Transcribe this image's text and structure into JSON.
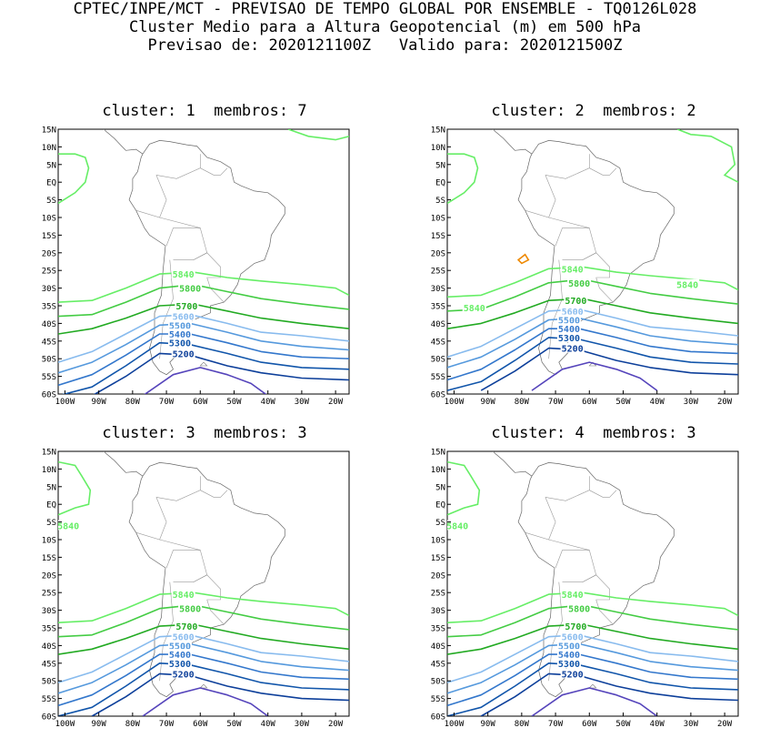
{
  "header": {
    "line1": "CPTEC/INPE/MCT - PREVISAO DE TEMPO GLOBAL POR ENSEMBLE - TQ0126L028",
    "line2": "Cluster Medio para a Altura Geopotencial (m) em 500 hPa",
    "line3": "Previsao de: 2020121100Z   Valido para: 2020121500Z"
  },
  "panels": [
    {
      "title": "cluster: 1  membros: 7",
      "labels": [
        "5840",
        "5800",
        "5700",
        "5600",
        "5500",
        "5400",
        "5300",
        "5200"
      ]
    },
    {
      "title": "cluster: 2  membros: 2",
      "labels": [
        "5840",
        "5800",
        "5700",
        "5600",
        "5500",
        "5400",
        "5300",
        "5200"
      ],
      "extra_labels": [
        "5840",
        "5840"
      ]
    },
    {
      "title": "cluster: 3  membros: 3",
      "labels": [
        "5840",
        "5800",
        "5700",
        "5600",
        "5500",
        "5400",
        "5300",
        "5200"
      ],
      "extra_labels": [
        "5840"
      ]
    },
    {
      "title": "cluster: 4  membros: 3",
      "labels": [
        "5840",
        "5800",
        "5700",
        "5600",
        "5500",
        "5400",
        "5300",
        "5200"
      ],
      "extra_labels": [
        "5840"
      ]
    }
  ],
  "axes": {
    "lat_labels": [
      "15N",
      "10N",
      "5N",
      "EQ",
      "5S",
      "10S",
      "15S",
      "20S",
      "25S",
      "30S",
      "35S",
      "40S",
      "45S",
      "50S",
      "55S",
      "60S"
    ],
    "lon_labels": [
      "100W",
      "90W",
      "80W",
      "70W",
      "60W",
      "50W",
      "40W",
      "30W",
      "20W"
    ]
  },
  "contour_colors": {
    "5840": "#66ee66",
    "5800": "#44cc44",
    "5700": "#22aa22",
    "5600": "#88bbee",
    "5500": "#5599dd",
    "5400": "#3377cc",
    "5300": "#1155aa",
    "5200": "#0d3f9a",
    "5100": "#5544bb",
    "small_contour": "#ee8800"
  }
}
